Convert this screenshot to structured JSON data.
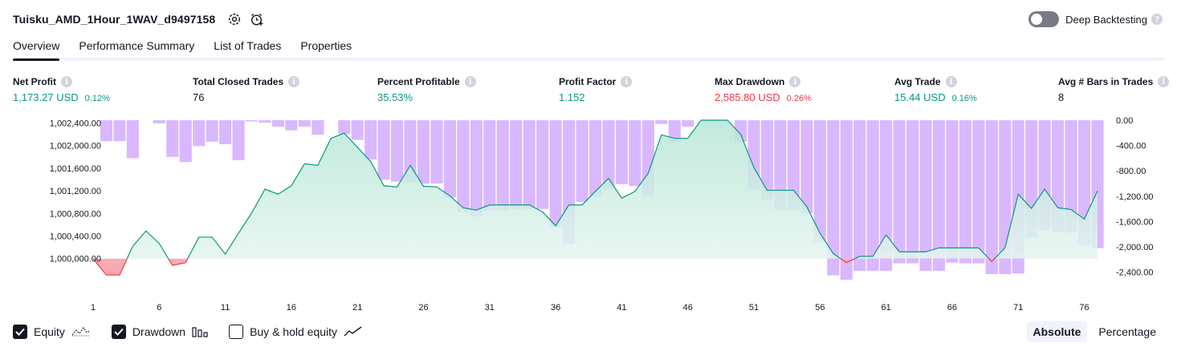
{
  "header": {
    "title": "Tuisku_AMD_1Hour_1WAV_d9497158",
    "settings_icon": "gear-icon",
    "alert_icon": "add-alert-clock-icon"
  },
  "deep_backtesting": {
    "label": "Deep Backtesting",
    "enabled": false,
    "help": "?"
  },
  "tabs": [
    {
      "label": "Overview",
      "active": true
    },
    {
      "label": "Performance Summary",
      "active": false
    },
    {
      "label": "List of Trades",
      "active": false
    },
    {
      "label": "Properties",
      "active": false
    }
  ],
  "stats": {
    "net_profit": {
      "label": "Net Profit",
      "value": "1,173.27 USD",
      "pct": "0.12%"
    },
    "total_closed_trades": {
      "label": "Total Closed Trades",
      "value": "76"
    },
    "percent_profitable": {
      "label": "Percent Profitable",
      "value": "35.53%"
    },
    "profit_factor": {
      "label": "Profit Factor",
      "value": "1.152"
    },
    "max_drawdown": {
      "label": "Max Drawdown",
      "value": "2,585.80 USD",
      "pct": "0.26%"
    },
    "avg_trade": {
      "label": "Avg Trade",
      "value": "15.44 USD",
      "pct": "0.16%"
    },
    "avg_bars": {
      "label": "Avg # Bars in Trades",
      "value": "8"
    },
    "info_glyph": "i"
  },
  "chart_data": {
    "type": "line",
    "x": [
      1,
      2,
      3,
      4,
      5,
      6,
      7,
      8,
      9,
      10,
      11,
      12,
      13,
      14,
      15,
      16,
      17,
      18,
      19,
      20,
      21,
      22,
      23,
      24,
      25,
      26,
      27,
      28,
      29,
      30,
      31,
      32,
      33,
      34,
      35,
      36,
      37,
      38,
      39,
      40,
      41,
      42,
      43,
      44,
      45,
      46,
      47,
      48,
      49,
      50,
      51,
      52,
      53,
      54,
      55,
      56,
      57,
      58,
      59,
      60,
      61,
      62,
      63,
      64,
      65,
      66,
      67,
      68,
      69,
      70,
      71,
      72,
      73,
      74,
      75,
      76,
      77
    ],
    "x_ticks": [
      "1",
      "6",
      "11",
      "16",
      "21",
      "26",
      "31",
      "36",
      "41",
      "46",
      "51",
      "56",
      "61",
      "66",
      "71",
      "76"
    ],
    "y_ticks": [
      "1,002,400.00",
      "1,002,000.00",
      "1,001,600.00",
      "1,001,200.00",
      "1,000,800.00",
      "1,000,400.00",
      "1,000,000.00"
    ],
    "y_ticks_right": [
      "0.00",
      "-400.00",
      "-800.00",
      "-1,200.00",
      "-1,600.00",
      "-2,000.00",
      "-2,400.00"
    ],
    "ylim": [
      999670,
      1002450
    ],
    "ylim_right": [
      -2480,
      0
    ],
    "series": [
      {
        "name": "Equity",
        "values": [
          1000000,
          999710,
          999710,
          1000220,
          1000490,
          1000270,
          999880,
          999930,
          1000380,
          1000380,
          1000080,
          1000450,
          1000810,
          1001230,
          1001140,
          1001290,
          1001680,
          1001650,
          1002130,
          1002220,
          1001970,
          1001720,
          1001290,
          1001270,
          1001650,
          1001280,
          1001270,
          1001110,
          1000900,
          1000860,
          1000950,
          1000950,
          1000950,
          1000950,
          1000830,
          1000580,
          1000950,
          1000950,
          1001190,
          1001420,
          1001070,
          1001190,
          1001510,
          1002190,
          1002130,
          1002130,
          1002450,
          1002450,
          1002450,
          1002200,
          1001610,
          1001210,
          1001210,
          1001210,
          1000920,
          1000450,
          1000090,
          999930,
          1000040,
          1000040,
          1000420,
          1000120,
          1000120,
          1000120,
          1000190,
          1000190,
          1000190,
          1000190,
          999950,
          1000190,
          1001140,
          1000890,
          1001230,
          1000900,
          1000870,
          1000700,
          1001200
        ]
      },
      {
        "name": "Drawdown",
        "values": [
          0,
          -330,
          -330,
          -600,
          0,
          -50,
          -580,
          -660,
          -410,
          -340,
          -380,
          -630,
          -20,
          -40,
          -100,
          -160,
          -100,
          -230,
          0,
          -220,
          -310,
          -620,
          -940,
          -970,
          -980,
          -1000,
          -1000,
          -1220,
          -1450,
          -1520,
          -1430,
          -1430,
          -1400,
          -1400,
          -1400,
          -1690,
          -1960,
          -1290,
          -1210,
          -1080,
          -1010,
          -1040,
          -1180,
          -60,
          -340,
          -100,
          0,
          0,
          0,
          -340,
          -1100,
          -1260,
          -1420,
          -1420,
          -1470,
          -1930,
          -2450,
          -2520,
          -2380,
          -2380,
          -2380,
          -2260,
          -2260,
          -2380,
          -2380,
          -2250,
          -2260,
          -2260,
          -2430,
          -2430,
          -2420,
          -1850,
          -1740,
          -1770,
          -1770,
          -1980,
          -2020
        ]
      }
    ],
    "legend": [
      {
        "name": "Equity",
        "checked": true,
        "icon": "equity-line-icon"
      },
      {
        "name": "Drawdown",
        "checked": true,
        "icon": "drawdown-bars-icon"
      },
      {
        "name": "Buy & hold equity",
        "checked": false,
        "icon": "buy-hold-line-icon"
      }
    ],
    "modes": [
      {
        "label": "Absolute",
        "active": true
      },
      {
        "label": "Percentage",
        "active": false
      }
    ],
    "colors": {
      "equity_up": "#089981",
      "equity_down": "#f23645",
      "drawdown_bar": "#d9b8ff",
      "equity_fill_top": "#b7e6d7",
      "equity_fill_bottom": "#eaf7f2",
      "drawdown_fill_top": "#f7a8b0"
    }
  }
}
